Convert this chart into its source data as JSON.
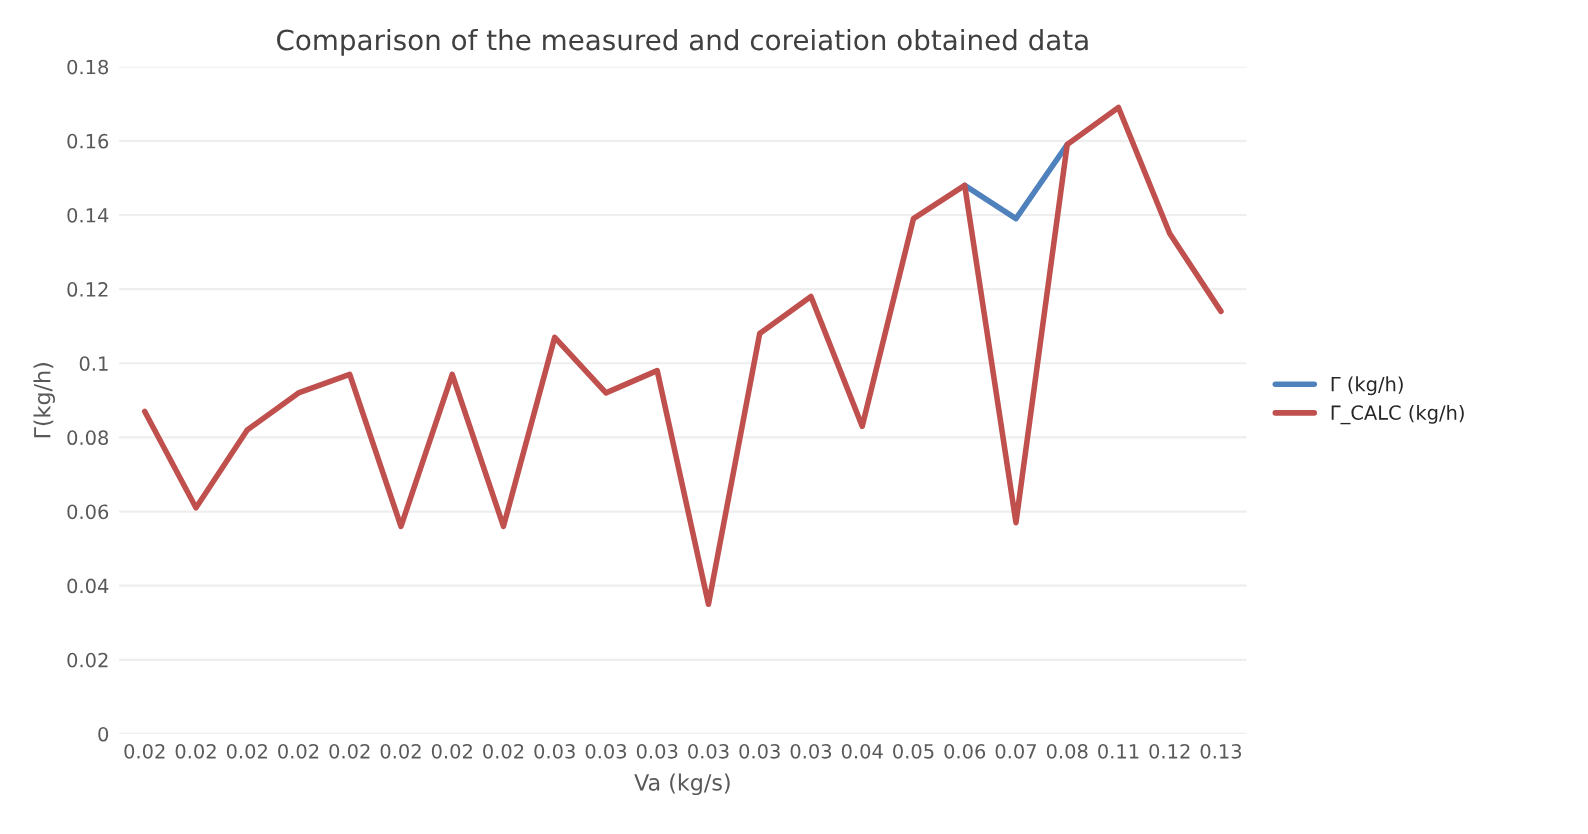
{
  "chart_data": {
    "type": "line",
    "title": "Comparison of the measured and coreiation obtained data",
    "xlabel": "Va (kg/s)",
    "ylabel": "Γ(kg/h)",
    "categories": [
      "0.02",
      "0.02",
      "0.02",
      "0.02",
      "0.02",
      "0.02",
      "0.02",
      "0.02",
      "0.03",
      "0.03",
      "0.03",
      "0.03",
      "0.03",
      "0.03",
      "0.04",
      "0.05",
      "0.06",
      "0.07",
      "0.08",
      "0.11",
      "0.12",
      "0.13"
    ],
    "series": [
      {
        "name": "Γ (kg/h)",
        "color": "#4f81bd",
        "values": [
          null,
          null,
          null,
          null,
          null,
          null,
          null,
          null,
          null,
          null,
          null,
          null,
          null,
          null,
          null,
          null,
          0.148,
          0.139,
          0.159,
          null,
          null,
          null
        ]
      },
      {
        "name": "Γ_CALC (kg/h)",
        "color": "#c0504d",
        "values": [
          0.087,
          0.061,
          0.082,
          0.092,
          0.097,
          0.056,
          0.097,
          0.056,
          0.107,
          0.092,
          0.098,
          0.035,
          0.108,
          0.118,
          0.083,
          0.139,
          0.148,
          0.057,
          0.159,
          0.169,
          0.135,
          0.114
        ]
      }
    ],
    "ylim": [
      0,
      0.18
    ],
    "yticks": [
      {
        "value": 0,
        "label": "0"
      },
      0.02,
      0.04,
      0.06,
      0.08,
      {
        "value": 0.1,
        "label": "0.1"
      },
      0.12,
      0.14,
      0.16,
      0.18
    ],
    "grid": "y",
    "legend": "right",
    "marker": "none",
    "line_style": "solid"
  }
}
